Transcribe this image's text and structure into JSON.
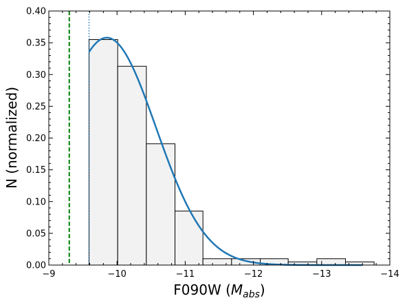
{
  "chart_data": {
    "type": "bar",
    "xlabel": "F090W",
    "xlabel_math": "M",
    "xlabel_math_sub": "abs",
    "ylabel": "N (normalized)",
    "xlim": [
      -9,
      -14
    ],
    "ylim": [
      0,
      0.4
    ],
    "x_ticks": [
      -9,
      -10,
      -11,
      -12,
      -13,
      -14
    ],
    "x_tick_labels": [
      "−9",
      "−10",
      "−11",
      "−12",
      "−13",
      "−14"
    ],
    "y_ticks": [
      0,
      0.05,
      0.1,
      0.15,
      0.2,
      0.25,
      0.3,
      0.35,
      0.4
    ],
    "y_tick_labels": [
      "0.00",
      "0.05",
      "0.10",
      "0.15",
      "0.20",
      "0.25",
      "0.30",
      "0.35",
      "0.40"
    ],
    "histogram": {
      "bin_edges": [
        -9.59,
        -10.01,
        -10.43,
        -10.85,
        -11.26,
        -11.68,
        -12.1,
        -12.51,
        -12.93,
        -13.35,
        -13.77
      ],
      "values": [
        0.355,
        0.313,
        0.191,
        0.085,
        0.01,
        0.01,
        0.01,
        0.005,
        0.01,
        0.005
      ],
      "fill": "#f2f2f2",
      "edge": "#000000"
    },
    "fit_curve": {
      "type": "half-gaussian",
      "peak_x": -9.85,
      "peak_y": 0.358,
      "sigma": 0.72,
      "start_x": -9.59,
      "end_x": -13.6,
      "color": "#1f77b4"
    },
    "vlines": [
      {
        "x": -9.3,
        "style": "dashed",
        "color": "#008000"
      },
      {
        "x": -9.59,
        "style": "dotted",
        "color": "#1f77b4"
      }
    ],
    "grid": false,
    "legend": "none"
  }
}
